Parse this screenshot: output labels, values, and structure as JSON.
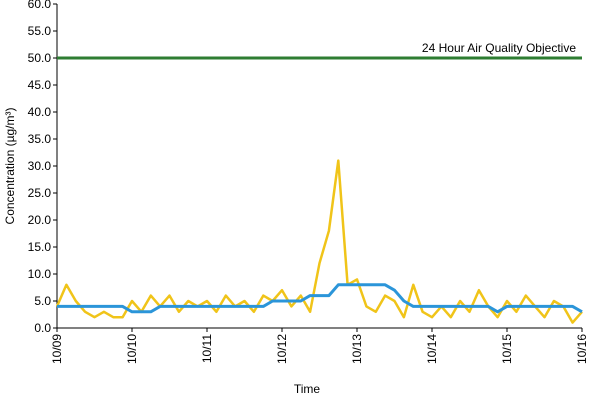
{
  "chart_data": {
    "type": "line",
    "x_label": "Time",
    "y_label": "Concentration (µg/m³)",
    "categories": [
      "10/09",
      null,
      null,
      null,
      null,
      null,
      null,
      null,
      "10/10",
      null,
      null,
      null,
      null,
      null,
      null,
      null,
      "10/11",
      null,
      null,
      null,
      null,
      null,
      null,
      null,
      "10/12",
      null,
      null,
      null,
      null,
      null,
      null,
      null,
      "10/13",
      null,
      null,
      null,
      null,
      null,
      null,
      null,
      "10/14",
      null,
      null,
      null,
      null,
      null,
      null,
      null,
      "10/15",
      null,
      null,
      null,
      null,
      null,
      null,
      null,
      "10/16"
    ],
    "series": [
      {
        "color": "#f0c419",
        "values": [
          4,
          8,
          5,
          3,
          2,
          3,
          2,
          2,
          5,
          3,
          6,
          4,
          6,
          3,
          5,
          4,
          5,
          3,
          6,
          4,
          5,
          3,
          6,
          5,
          7,
          4,
          6,
          3,
          12,
          18,
          31,
          8,
          9,
          4,
          3,
          6,
          5,
          2,
          8,
          3,
          2,
          4,
          2,
          5,
          3,
          7,
          4,
          2,
          5,
          3,
          6,
          4,
          2,
          5,
          4,
          1,
          3
        ]
      },
      {
        "color": "#2b95d9",
        "values": [
          4,
          4,
          4,
          4,
          4,
          4,
          4,
          4,
          3,
          3,
          3,
          4,
          4,
          4,
          4,
          4,
          4,
          4,
          4,
          4,
          4,
          4,
          4,
          5,
          5,
          5,
          5,
          6,
          6,
          6,
          8,
          8,
          8,
          8,
          8,
          8,
          7,
          5,
          4,
          4,
          4,
          4,
          4,
          4,
          4,
          4,
          4,
          3,
          4,
          4,
          4,
          4,
          4,
          4,
          4,
          4,
          3
        ]
      }
    ],
    "annotation": {
      "text": "24 Hour Air Quality Objective",
      "value": 50,
      "color": "#2e7d32"
    },
    "ylim": [
      0,
      60
    ],
    "yticks": [
      {
        "value": 0,
        "label": "0.0"
      },
      {
        "value": 5,
        "label": "5.0"
      },
      {
        "value": 10,
        "label": "10.0"
      },
      {
        "value": 15,
        "label": "15.0"
      },
      {
        "value": 20,
        "label": "20.0"
      },
      {
        "value": 25,
        "label": "25.0"
      },
      {
        "value": 30,
        "label": "30.0"
      },
      {
        "value": 35,
        "label": "35.0"
      },
      {
        "value": 40,
        "label": "40.0"
      },
      {
        "value": 45,
        "label": "45.0"
      },
      {
        "value": 50,
        "label": "50.0"
      },
      {
        "value": 55,
        "label": "55.0"
      },
      {
        "value": 60,
        "label": "60.0"
      }
    ]
  }
}
